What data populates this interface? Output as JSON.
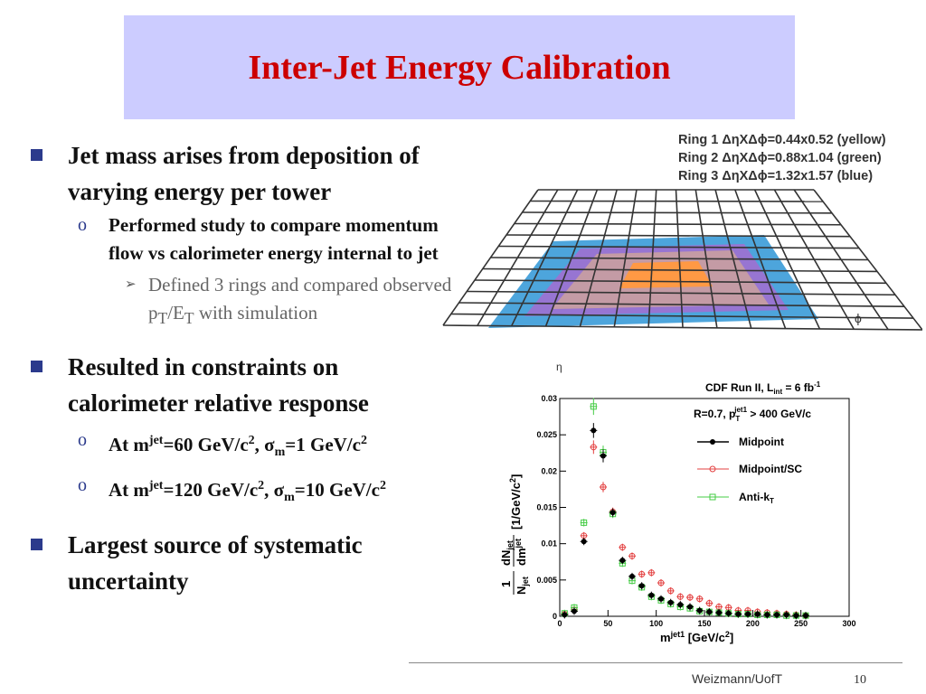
{
  "title": "Inter-Jet Energy Calibration",
  "bullets": {
    "b1": "Jet mass arises from deposition of varying energy per tower",
    "b1_sub": "Performed study to compare momentum flow vs calorimeter energy internal to jet",
    "b1_subsub_a": "Defined 3 rings and compared observed p",
    "b1_subsub_b": "T",
    "b1_subsub_c": "/E",
    "b1_subsub_d": "T",
    "b1_subsub_e": " with simulation",
    "b2": "Resulted in constraints on calorimeter relative response",
    "b2_sub1_a": "At m",
    "b2_sub1_b": "jet",
    "b2_sub1_c": "=60 GeV/c",
    "b2_sub1_d": "2",
    "b2_sub1_e": ", σ",
    "b2_sub1_f": "m",
    "b2_sub1_g": "=1 GeV/c",
    "b2_sub1_h": "2",
    "b2_sub2_a": "At m",
    "b2_sub2_b": "jet",
    "b2_sub2_c": "=120 GeV/c",
    "b2_sub2_d": "2",
    "b2_sub2_e": ", σ",
    "b2_sub2_f": "m",
    "b2_sub2_g": "=10 GeV/c",
    "b2_sub2_h": "2",
    "b3": "Largest source of systematic uncertainty"
  },
  "rings": [
    "Ring 1 ΔηXΔϕ=0.44x0.52 (yellow)",
    "Ring 2 ΔηXΔϕ=0.88x1.04 (green)",
    "Ring 3 ΔηXΔϕ=1.32x1.57 (blue)"
  ],
  "phi_label": "ϕ",
  "eta_label": "η",
  "chart_data": {
    "type": "scatter",
    "title": "CDF Run II, L",
    "title_sub": "int",
    "title_tail": " = 6 fb",
    "title_sup": "-1",
    "subtitle": "R=0.7, p",
    "subtitle_sub": "T",
    "subtitle_sup": "jet1",
    "subtitle_tail": " > 400 GeV/c",
    "xlabel": "m",
    "xlabel_sup": "jet1",
    "xlabel_tail": " [GeV/c",
    "xlabel_sup2": "2",
    "xlabel_end": "]",
    "ylabel_frac_num": "1",
    "ylabel_frac_den": "N",
    "ylabel_frac_den_sub": "jet",
    "ylabel_d_num": "dN",
    "ylabel_d_num_sub": "jet",
    "ylabel_d_den": "dm",
    "ylabel_d_den_sup": "jet",
    "ylabel_unit": "[1/GeV/c",
    "ylabel_unit_sup": "2",
    "ylabel_unit_end": "]",
    "xlim": [
      0,
      300
    ],
    "ylim": [
      0,
      0.03
    ],
    "xticks": [
      "0",
      "50",
      "100",
      "150",
      "200",
      "250",
      "300"
    ],
    "yticks": [
      "0",
      "0.005",
      "0.01",
      "0.015",
      "0.02",
      "0.025",
      "0.03"
    ],
    "legend_placement": "top-right",
    "series": [
      {
        "name": "Midpoint",
        "color": "#000000",
        "marker": "filled-circle",
        "x": [
          5,
          15,
          25,
          35,
          45,
          55,
          65,
          75,
          85,
          95,
          105,
          115,
          125,
          135,
          145,
          155,
          165,
          175,
          185,
          195,
          205,
          215,
          225,
          235,
          245,
          255
        ],
        "y": [
          0.0002,
          0.0007,
          0.0103,
          0.0256,
          0.0221,
          0.0143,
          0.0077,
          0.0055,
          0.0042,
          0.0029,
          0.0024,
          0.0019,
          0.0016,
          0.0013,
          0.0008,
          0.0006,
          0.0005,
          0.0004,
          0.0003,
          0.0003,
          0.0003,
          0.0002,
          0.0002,
          0.0002,
          0.0001,
          0.0001
        ]
      },
      {
        "name": "Midpoint/SC",
        "color": "#e34040",
        "marker": "open-circle",
        "x": [
          5,
          15,
          25,
          35,
          45,
          55,
          65,
          75,
          85,
          95,
          105,
          115,
          125,
          135,
          145,
          155,
          165,
          175,
          185,
          195,
          205,
          215,
          225,
          235,
          245,
          255
        ],
        "y": [
          0.0003,
          0.0009,
          0.0111,
          0.0233,
          0.0178,
          0.0144,
          0.0095,
          0.0083,
          0.0058,
          0.006,
          0.0046,
          0.0035,
          0.0027,
          0.0026,
          0.0024,
          0.0018,
          0.0013,
          0.0012,
          0.0008,
          0.0008,
          0.0006,
          0.0005,
          0.0004,
          0.0003,
          0.0002,
          0.0001
        ]
      },
      {
        "name": "Anti-k",
        "name_sub": "T",
        "color": "#44cc44",
        "marker": "open-square",
        "x": [
          5,
          15,
          25,
          35,
          45,
          55,
          65,
          75,
          85,
          95,
          105,
          115,
          125,
          135,
          145,
          155,
          165,
          175,
          185,
          195,
          205,
          215,
          225,
          235,
          245,
          255
        ],
        "y": [
          0.0004,
          0.0012,
          0.0129,
          0.0289,
          0.0226,
          0.0141,
          0.0073,
          0.0049,
          0.004,
          0.0027,
          0.0022,
          0.0017,
          0.0013,
          0.0011,
          0.0007,
          0.0006,
          0.0005,
          0.0004,
          0.0003,
          0.0003,
          0.0002,
          0.0002,
          0.0002,
          0.0001,
          0.0001,
          0.0001
        ]
      }
    ]
  },
  "footer": {
    "org": "Weizmann/UofT",
    "page": "10"
  }
}
